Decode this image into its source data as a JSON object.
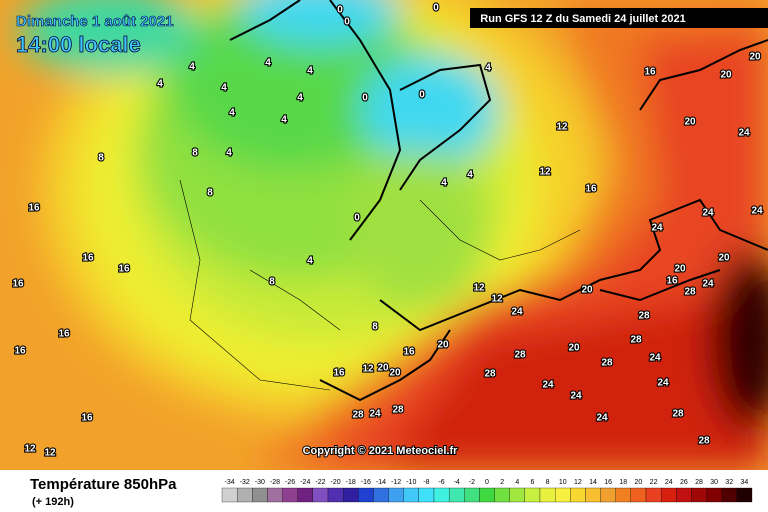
{
  "header": {
    "date": "Dimanche 1 août 2021",
    "time": "14:00 locale",
    "run": "Run GFS 12 Z du Samedi 24 juillet 2021"
  },
  "map": {
    "labels": [
      0,
      0,
      0,
      4,
      4,
      4,
      4,
      4,
      4,
      4,
      4,
      4,
      0,
      0,
      4,
      16,
      20,
      20,
      12,
      12,
      16,
      20,
      24,
      24,
      24,
      24,
      16,
      16,
      16,
      16,
      16,
      16,
      16,
      12,
      12,
      8,
      8,
      8,
      8,
      4,
      0,
      4,
      4,
      12,
      12,
      24,
      20,
      16,
      20,
      20,
      20,
      16,
      8,
      16,
      12,
      20,
      20,
      28,
      24,
      28,
      28,
      28,
      24,
      20,
      24,
      28,
      24,
      28,
      24,
      24,
      28,
      28,
      28,
      28,
      24
    ],
    "copyright": "Copyright © 2021 Meteociel.fr"
  },
  "legend": {
    "title": "Température 850hPa",
    "subtitle": "(+ 192h)",
    "scale": [
      -34,
      -32,
      -30,
      -28,
      -26,
      -24,
      -22,
      -20,
      -18,
      -16,
      -14,
      -12,
      -10,
      -8,
      -6,
      -4,
      -2,
      0,
      2,
      4,
      6,
      8,
      10,
      12,
      14,
      16,
      18,
      20,
      22,
      24,
      26,
      28,
      30,
      32,
      34
    ]
  }
}
